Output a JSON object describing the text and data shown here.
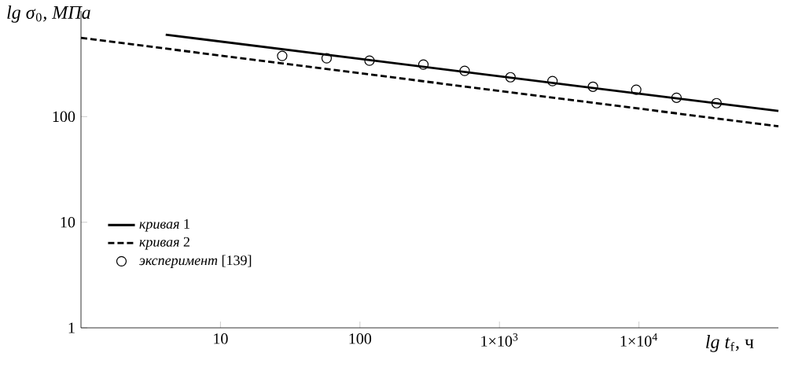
{
  "chart_data": {
    "type": "line",
    "xlabel": "*lg t*$_{f}$, ч",
    "ylabel": "*lg σ*$_{0}$*, МПа*",
    "log": "xy",
    "xlim": [
      1,
      100000
    ],
    "ylim": [
      1,
      1000
    ],
    "xticks": [
      10,
      100,
      {
        "value": 1000,
        "label": "1×10$^{3}$"
      },
      {
        "value": 10000,
        "label": "1×10$^{4}$"
      }
    ],
    "yticks": [
      1,
      10,
      100
    ],
    "legend": "bottom left",
    "series": [
      {
        "name": "*кривая* 1",
        "color": "#000000",
        "line_style": "solid",
        "marker": "none",
        "x": [
          4.05,
          100000
        ],
        "values": [
          597,
          113
        ]
      },
      {
        "name": "*кривая* 2",
        "color": "#000000",
        "line_style": "dashed",
        "marker": "none",
        "x": [
          1,
          100000
        ],
        "values": [
          557,
          81
        ]
      },
      {
        "name": "*эксперимент* [139]",
        "type": "scatter",
        "color": "#000000",
        "marker": "circle",
        "x": [
          27.7,
          57.7,
          117,
          285,
          563,
          1200,
          2400,
          4680,
          9560,
          18600,
          36000
        ],
        "values": [
          376,
          357,
          339,
          311,
          271,
          236,
          217,
          192,
          180,
          151,
          134
        ]
      }
    ]
  }
}
